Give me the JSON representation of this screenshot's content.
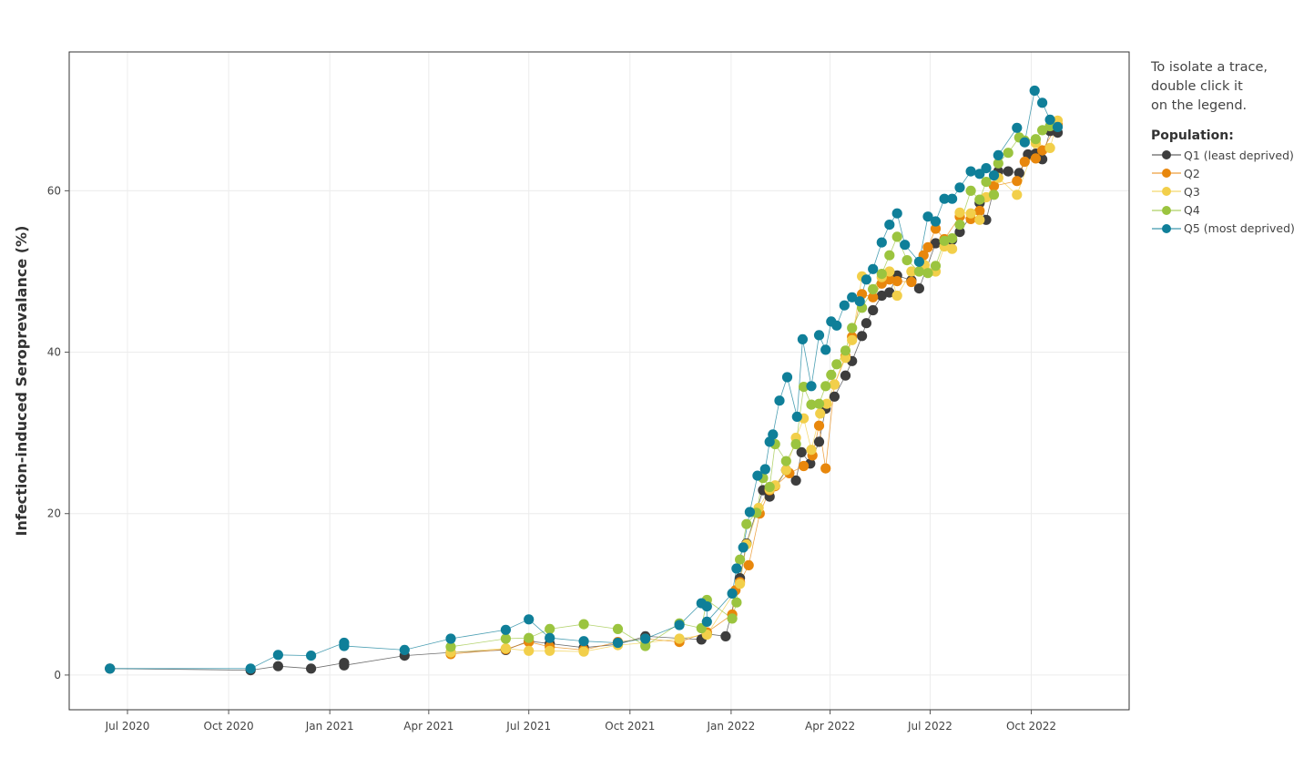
{
  "note": "To isolate a trace,\ndouble click it\non the legend.",
  "legend": {
    "title": "Population:",
    "items": [
      {
        "label": "Q1 (least deprived)",
        "color": "#3d3d3d"
      },
      {
        "label": "Q2",
        "color": "#e8870c"
      },
      {
        "label": "Q3",
        "color": "#f2cf4a"
      },
      {
        "label": "Q4",
        "color": "#9bc43f"
      },
      {
        "label": "Q5 (most deprived)",
        "color": "#0f7f99"
      }
    ]
  },
  "chart_data": {
    "type": "scatter",
    "ylabel": "Infection-induced Seroprevalance  (%)",
    "xlabel": "",
    "x_range": [
      "2020-05-09",
      "2022-12-29"
    ],
    "y_range": [
      -4.3,
      77.2
    ],
    "yticks": [
      0,
      20,
      40,
      60
    ],
    "xticks": [
      {
        "date": "2020-07-01",
        "label": "Jul 2020"
      },
      {
        "date": "2020-10-01",
        "label": "Oct 2020"
      },
      {
        "date": "2021-01-01",
        "label": "Jan 2021"
      },
      {
        "date": "2021-04-01",
        "label": "Apr 2021"
      },
      {
        "date": "2021-07-01",
        "label": "Jul 2021"
      },
      {
        "date": "2021-10-01",
        "label": "Oct 2021"
      },
      {
        "date": "2022-01-01",
        "label": "Jan 2022"
      },
      {
        "date": "2022-04-01",
        "label": "Apr 2022"
      },
      {
        "date": "2022-07-01",
        "label": "Jul 2022"
      },
      {
        "date": "2022-10-01",
        "label": "Oct 2022"
      }
    ],
    "grid": true,
    "legend_position": "right",
    "series": [
      {
        "name": "Q1 (least deprived)",
        "color": "#3d3d3d",
        "points": [
          [
            "2020-06-15",
            0.8
          ],
          [
            "2020-10-21",
            0.6
          ],
          [
            "2020-11-15",
            1.1
          ],
          [
            "2020-12-15",
            0.8
          ],
          [
            "2021-01-14",
            1.5
          ],
          [
            "2021-01-14",
            1.2
          ],
          [
            "2021-03-10",
            2.4
          ],
          [
            "2021-04-21",
            2.8
          ],
          [
            "2021-06-10",
            3.1
          ],
          [
            "2021-07-01",
            4.2
          ],
          [
            "2021-07-20",
            3.9
          ],
          [
            "2021-08-20",
            3.4
          ],
          [
            "2021-09-20",
            3.8
          ],
          [
            "2021-10-15",
            4.8
          ],
          [
            "2021-12-05",
            4.4
          ],
          [
            "2021-12-10",
            5.1
          ],
          [
            "2021-12-27",
            4.8
          ],
          [
            "2022-01-09",
            12.0
          ],
          [
            "2022-01-15",
            16.3
          ],
          [
            "2022-01-30",
            22.9
          ],
          [
            "2022-02-05",
            22.1
          ],
          [
            "2022-02-20",
            25.4
          ],
          [
            "2022-03-01",
            24.1
          ],
          [
            "2022-03-06",
            27.6
          ],
          [
            "2022-03-14",
            26.2
          ],
          [
            "2022-03-22",
            28.9
          ],
          [
            "2022-03-28",
            33.0
          ],
          [
            "2022-04-05",
            34.5
          ],
          [
            "2022-04-15",
            37.1
          ],
          [
            "2022-04-21",
            38.9
          ],
          [
            "2022-04-30",
            42.0
          ],
          [
            "2022-05-04",
            43.6
          ],
          [
            "2022-05-10",
            45.2
          ],
          [
            "2022-05-18",
            47.0
          ],
          [
            "2022-05-25",
            47.4
          ],
          [
            "2022-06-01",
            49.5
          ],
          [
            "2022-06-14",
            48.9
          ],
          [
            "2022-06-21",
            47.9
          ],
          [
            "2022-07-06",
            53.5
          ],
          [
            "2022-07-21",
            53.9
          ],
          [
            "2022-07-28",
            54.9
          ],
          [
            "2022-08-15",
            58.5
          ],
          [
            "2022-08-21",
            56.4
          ],
          [
            "2022-09-01",
            62.4
          ],
          [
            "2022-09-10",
            62.4
          ],
          [
            "2022-09-20",
            62.2
          ],
          [
            "2022-09-28",
            64.5
          ],
          [
            "2022-10-05",
            64.6
          ],
          [
            "2022-10-11",
            63.9
          ],
          [
            "2022-10-18",
            67.4
          ],
          [
            "2022-10-25",
            67.2
          ]
        ]
      },
      {
        "name": "Q2",
        "color": "#e8870c",
        "points": [
          [
            "2021-04-21",
            2.6
          ],
          [
            "2021-06-10",
            3.2
          ],
          [
            "2021-07-01",
            4.1
          ],
          [
            "2021-07-20",
            3.5
          ],
          [
            "2021-08-20",
            3.1
          ],
          [
            "2021-09-20",
            4.1
          ],
          [
            "2021-10-15",
            4.5
          ],
          [
            "2021-11-15",
            4.1
          ],
          [
            "2021-12-10",
            5.3
          ],
          [
            "2022-01-02",
            7.5
          ],
          [
            "2022-01-05",
            10.5
          ],
          [
            "2022-01-09",
            11.5
          ],
          [
            "2022-01-17",
            13.6
          ],
          [
            "2022-01-27",
            20.0
          ],
          [
            "2022-02-05",
            22.9
          ],
          [
            "2022-02-10",
            23.4
          ],
          [
            "2022-02-23",
            25.0
          ],
          [
            "2022-03-08",
            25.9
          ],
          [
            "2022-03-16",
            27.2
          ],
          [
            "2022-03-22",
            30.9
          ],
          [
            "2022-03-28",
            25.6
          ],
          [
            "2022-04-05",
            36.0
          ],
          [
            "2022-04-15",
            39.5
          ],
          [
            "2022-04-21",
            41.9
          ],
          [
            "2022-04-30",
            47.2
          ],
          [
            "2022-05-10",
            46.8
          ],
          [
            "2022-05-18",
            48.5
          ],
          [
            "2022-05-25",
            49.0
          ],
          [
            "2022-06-01",
            48.8
          ],
          [
            "2022-06-14",
            48.7
          ],
          [
            "2022-06-25",
            52.0
          ],
          [
            "2022-06-29",
            53.0
          ],
          [
            "2022-07-06",
            55.3
          ],
          [
            "2022-07-14",
            54.0
          ],
          [
            "2022-07-28",
            56.8
          ],
          [
            "2022-08-07",
            56.5
          ],
          [
            "2022-08-15",
            57.5
          ],
          [
            "2022-08-28",
            60.6
          ],
          [
            "2022-09-18",
            61.2
          ],
          [
            "2022-09-25",
            63.6
          ],
          [
            "2022-10-05",
            64.0
          ],
          [
            "2022-10-11",
            65.0
          ],
          [
            "2022-10-25",
            68.2
          ]
        ]
      },
      {
        "name": "Q3",
        "color": "#f2cf4a",
        "points": [
          [
            "2021-04-21",
            2.8
          ],
          [
            "2021-06-10",
            3.3
          ],
          [
            "2021-07-01",
            3.0
          ],
          [
            "2021-07-20",
            3.0
          ],
          [
            "2021-08-20",
            2.9
          ],
          [
            "2021-09-20",
            3.7
          ],
          [
            "2021-10-15",
            4.0
          ],
          [
            "2021-11-15",
            4.5
          ],
          [
            "2021-12-10",
            5.0
          ],
          [
            "2022-01-09",
            11.3
          ],
          [
            "2022-01-15",
            16.2
          ],
          [
            "2022-01-26",
            20.7
          ],
          [
            "2022-02-05",
            23.0
          ],
          [
            "2022-02-10",
            23.5
          ],
          [
            "2022-02-20",
            25.4
          ],
          [
            "2022-03-01",
            29.4
          ],
          [
            "2022-03-08",
            31.8
          ],
          [
            "2022-03-15",
            27.9
          ],
          [
            "2022-03-23",
            32.4
          ],
          [
            "2022-03-29",
            33.6
          ],
          [
            "2022-04-05",
            36.0
          ],
          [
            "2022-04-15",
            39.3
          ],
          [
            "2022-04-21",
            41.5
          ],
          [
            "2022-04-30",
            49.4
          ],
          [
            "2022-05-10",
            47.8
          ],
          [
            "2022-05-18",
            49.3
          ],
          [
            "2022-05-25",
            50.0
          ],
          [
            "2022-06-01",
            47.0
          ],
          [
            "2022-06-14",
            50.0
          ],
          [
            "2022-06-26",
            50.8
          ],
          [
            "2022-07-06",
            50.0
          ],
          [
            "2022-07-14",
            53.1
          ],
          [
            "2022-07-21",
            52.8
          ],
          [
            "2022-07-28",
            57.3
          ],
          [
            "2022-08-07",
            57.2
          ],
          [
            "2022-08-15",
            56.4
          ],
          [
            "2022-08-21",
            59.2
          ],
          [
            "2022-09-01",
            61.6
          ],
          [
            "2022-09-18",
            59.5
          ],
          [
            "2022-10-05",
            65.9
          ],
          [
            "2022-10-18",
            65.3
          ],
          [
            "2022-10-25",
            68.7
          ]
        ]
      },
      {
        "name": "Q4",
        "color": "#9bc43f",
        "points": [
          [
            "2021-04-21",
            3.5
          ],
          [
            "2021-06-10",
            4.5
          ],
          [
            "2021-07-01",
            4.6
          ],
          [
            "2021-07-20",
            5.7
          ],
          [
            "2021-08-20",
            6.3
          ],
          [
            "2021-09-20",
            5.7
          ],
          [
            "2021-10-15",
            3.6
          ],
          [
            "2021-11-15",
            6.4
          ],
          [
            "2021-12-05",
            5.8
          ],
          [
            "2021-12-10",
            9.3
          ],
          [
            "2022-01-02",
            7.0
          ],
          [
            "2022-01-06",
            9.0
          ],
          [
            "2022-01-09",
            14.3
          ],
          [
            "2022-01-15",
            18.7
          ],
          [
            "2022-01-24",
            20.1
          ],
          [
            "2022-01-30",
            24.4
          ],
          [
            "2022-02-05",
            23.3
          ],
          [
            "2022-02-10",
            28.6
          ],
          [
            "2022-02-20",
            26.5
          ],
          [
            "2022-03-01",
            28.6
          ],
          [
            "2022-03-08",
            35.7
          ],
          [
            "2022-03-15",
            33.5
          ],
          [
            "2022-03-22",
            33.6
          ],
          [
            "2022-03-28",
            35.8
          ],
          [
            "2022-04-02",
            37.2
          ],
          [
            "2022-04-07",
            38.5
          ],
          [
            "2022-04-15",
            40.2
          ],
          [
            "2022-04-21",
            43.0
          ],
          [
            "2022-04-30",
            45.5
          ],
          [
            "2022-05-10",
            47.8
          ],
          [
            "2022-05-18",
            49.7
          ],
          [
            "2022-05-25",
            52.0
          ],
          [
            "2022-06-01",
            54.3
          ],
          [
            "2022-06-10",
            51.4
          ],
          [
            "2022-06-21",
            50.0
          ],
          [
            "2022-06-29",
            49.8
          ],
          [
            "2022-07-06",
            50.7
          ],
          [
            "2022-07-14",
            53.8
          ],
          [
            "2022-07-21",
            54.1
          ],
          [
            "2022-07-28",
            55.8
          ],
          [
            "2022-08-07",
            60.0
          ],
          [
            "2022-08-15",
            58.9
          ],
          [
            "2022-08-21",
            61.1
          ],
          [
            "2022-08-28",
            59.5
          ],
          [
            "2022-09-01",
            63.4
          ],
          [
            "2022-09-10",
            64.7
          ],
          [
            "2022-09-20",
            66.6
          ],
          [
            "2022-09-25",
            66.2
          ],
          [
            "2022-10-05",
            66.4
          ],
          [
            "2022-10-11",
            67.5
          ],
          [
            "2022-10-18",
            68.0
          ]
        ]
      },
      {
        "name": "Q5 (most deprived)",
        "color": "#0f7f99",
        "points": [
          [
            "2020-06-15",
            0.8
          ],
          [
            "2020-10-21",
            0.8
          ],
          [
            "2020-11-15",
            2.5
          ],
          [
            "2020-12-15",
            2.4
          ],
          [
            "2021-01-14",
            4.0
          ],
          [
            "2021-01-14",
            3.6
          ],
          [
            "2021-03-10",
            3.1
          ],
          [
            "2021-04-21",
            4.5
          ],
          [
            "2021-06-10",
            5.6
          ],
          [
            "2021-07-01",
            6.9
          ],
          [
            "2021-07-20",
            4.6
          ],
          [
            "2021-08-20",
            4.2
          ],
          [
            "2021-09-20",
            4.0
          ],
          [
            "2021-10-15",
            4.5
          ],
          [
            "2021-11-15",
            6.2
          ],
          [
            "2021-12-05",
            8.9
          ],
          [
            "2021-12-10",
            8.5
          ],
          [
            "2021-12-10",
            6.6
          ],
          [
            "2022-01-02",
            10.1
          ],
          [
            "2022-01-06",
            13.2
          ],
          [
            "2022-01-12",
            15.8
          ],
          [
            "2022-01-18",
            20.2
          ],
          [
            "2022-01-25",
            24.7
          ],
          [
            "2022-02-01",
            25.5
          ],
          [
            "2022-02-05",
            28.9
          ],
          [
            "2022-02-08",
            29.8
          ],
          [
            "2022-02-14",
            34.0
          ],
          [
            "2022-02-21",
            36.9
          ],
          [
            "2022-03-02",
            32.0
          ],
          [
            "2022-03-07",
            41.6
          ],
          [
            "2022-03-15",
            35.8
          ],
          [
            "2022-03-22",
            42.1
          ],
          [
            "2022-03-28",
            40.3
          ],
          [
            "2022-04-02",
            43.8
          ],
          [
            "2022-04-07",
            43.3
          ],
          [
            "2022-04-14",
            45.8
          ],
          [
            "2022-04-21",
            46.8
          ],
          [
            "2022-04-28",
            46.3
          ],
          [
            "2022-05-04",
            49.0
          ],
          [
            "2022-05-10",
            50.3
          ],
          [
            "2022-05-18",
            53.6
          ],
          [
            "2022-05-25",
            55.8
          ],
          [
            "2022-06-01",
            57.2
          ],
          [
            "2022-06-08",
            53.3
          ],
          [
            "2022-06-21",
            51.2
          ],
          [
            "2022-06-29",
            56.8
          ],
          [
            "2022-07-06",
            56.2
          ],
          [
            "2022-07-14",
            59.0
          ],
          [
            "2022-07-21",
            59.0
          ],
          [
            "2022-07-28",
            60.4
          ],
          [
            "2022-08-07",
            62.4
          ],
          [
            "2022-08-15",
            62.1
          ],
          [
            "2022-08-21",
            62.8
          ],
          [
            "2022-08-28",
            61.9
          ],
          [
            "2022-09-01",
            64.4
          ],
          [
            "2022-09-18",
            67.8
          ],
          [
            "2022-09-25",
            66.0
          ],
          [
            "2022-10-04",
            72.4
          ],
          [
            "2022-10-11",
            70.9
          ],
          [
            "2022-10-18",
            68.8
          ],
          [
            "2022-10-25",
            67.9
          ]
        ]
      }
    ]
  }
}
